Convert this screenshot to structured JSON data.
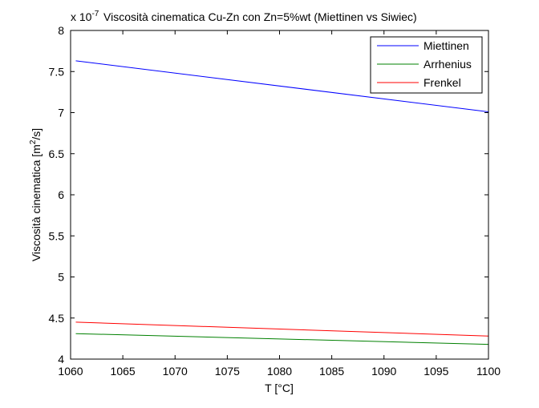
{
  "chart_data": {
    "type": "line",
    "title": "Viscosità cinematica Cu-Zn con Zn=5%wt (Miettinen vs Siwiec)",
    "exponent_label": {
      "base": "x 10",
      "exp": "-7"
    },
    "xlabel": "T [°C]",
    "ylabel": {
      "main": "Viscosità cinematica [m",
      "sup": "2",
      "tail": "/s]"
    },
    "xlim": [
      1060,
      1100
    ],
    "ylim": [
      4,
      8
    ],
    "x_ticks": [
      1060,
      1065,
      1070,
      1075,
      1080,
      1085,
      1090,
      1095,
      1100
    ],
    "y_ticks": [
      4,
      4.5,
      5,
      5.5,
      6,
      6.5,
      7,
      7.5,
      8
    ],
    "x_tick_labels": [
      "1060",
      "1065",
      "1070",
      "1075",
      "1080",
      "1085",
      "1090",
      "1095",
      "1100"
    ],
    "y_tick_labels": [
      "4",
      "4.5",
      "5",
      "5.5",
      "6",
      "6.5",
      "7",
      "7.5",
      "8"
    ],
    "grid": false,
    "legend_position": "top-right",
    "series": [
      {
        "name": "Miettinen",
        "color": "#0000ff",
        "x": [
          1060.5,
          1100
        ],
        "y": [
          7.63,
          7.01
        ]
      },
      {
        "name": "Arrhenius",
        "color": "#008000",
        "x": [
          1060.5,
          1100
        ],
        "y": [
          4.31,
          4.18
        ]
      },
      {
        "name": "Frenkel",
        "color": "#ff0000",
        "x": [
          1060.5,
          1100
        ],
        "y": [
          4.45,
          4.28
        ]
      }
    ]
  }
}
